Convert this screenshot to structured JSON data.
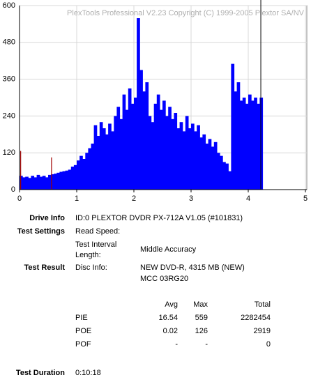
{
  "chart_data": {
    "type": "bar",
    "watermark": "PlexTools Professional V2.23 Copyright (C) 1999-2005 Plextor SA/NV",
    "xlim": [
      0,
      5
    ],
    "xticks": [
      0,
      1,
      2,
      3,
      4,
      5
    ],
    "ylim": [
      0,
      600
    ],
    "yticks": [
      0,
      120,
      240,
      360,
      480,
      600
    ],
    "grid": true,
    "bar_width": 0.05,
    "cursor_x": 4.22,
    "cursor_color": "#000000",
    "series": [
      {
        "color": "#0000ff",
        "x": [
          0,
          0.05,
          0.1,
          0.15,
          0.2,
          0.25,
          0.3,
          0.35,
          0.4,
          0.45,
          0.5,
          0.55,
          0.6,
          0.65,
          0.7,
          0.75,
          0.8,
          0.85,
          0.9,
          0.95,
          1,
          1.05,
          1.1,
          1.15,
          1.2,
          1.25,
          1.3,
          1.35,
          1.4,
          1.45,
          1.5,
          1.55,
          1.6,
          1.65,
          1.7,
          1.75,
          1.8,
          1.85,
          1.9,
          1.95,
          2,
          2.05,
          2.1,
          2.15,
          2.2,
          2.25,
          2.3,
          2.35,
          2.4,
          2.45,
          2.5,
          2.55,
          2.6,
          2.65,
          2.7,
          2.75,
          2.8,
          2.85,
          2.9,
          2.95,
          3,
          3.05,
          3.1,
          3.15,
          3.2,
          3.25,
          3.3,
          3.35,
          3.4,
          3.45,
          3.5,
          3.55,
          3.6,
          3.65,
          3.7,
          3.75,
          3.8,
          3.85,
          3.9,
          3.95,
          4,
          4.05,
          4.1,
          4.15,
          4.2
        ],
        "values": [
          45,
          40,
          42,
          38,
          45,
          40,
          48,
          42,
          45,
          40,
          48,
          50,
          52,
          55,
          58,
          60,
          62,
          65,
          75,
          80,
          95,
          110,
          100,
          120,
          135,
          150,
          210,
          175,
          220,
          200,
          180,
          215,
          190,
          240,
          270,
          230,
          310,
          260,
          330,
          280,
          300,
          559,
          390,
          320,
          350,
          240,
          220,
          280,
          310,
          260,
          290,
          240,
          270,
          230,
          250,
          200,
          220,
          190,
          240,
          200,
          215,
          190,
          210,
          170,
          180,
          150,
          165,
          140,
          155,
          120,
          110,
          90,
          85,
          60,
          410,
          320,
          350,
          290,
          300,
          280,
          310,
          290,
          300,
          280,
          300
        ]
      },
      {
        "color": "#a00000",
        "x": [
          0.02,
          0.56
        ],
        "values": [
          126,
          105
        ]
      }
    ]
  },
  "report": {
    "drive_info": {
      "label": "Drive Info",
      "value": "ID:0 PLEXTOR DVDR PX-712A V1.05 (#101831)"
    },
    "test_settings": {
      "label": "Test Settings",
      "read_speed": "Read Speed:",
      "interval_label": [
        "Test Interval",
        "Length:"
      ],
      "interval_value": "Middle Accuracy"
    },
    "test_result": {
      "label": "Test Result",
      "disc_label": "Disc Info:",
      "disc_lines": [
        "NEW DVD-R, 4315 MB (NEW)",
        "MCC 03RG20"
      ]
    },
    "table": {
      "headers": [
        "Avg",
        "Max",
        "Total"
      ],
      "rows": [
        [
          "PIE",
          "16.54",
          "559",
          "2282454"
        ],
        [
          "POE",
          "0.02",
          "126",
          "2919"
        ],
        [
          "POF",
          "-",
          "-",
          "0"
        ]
      ]
    },
    "test_duration": {
      "label": "Test Duration",
      "value": "0:10:18"
    }
  }
}
